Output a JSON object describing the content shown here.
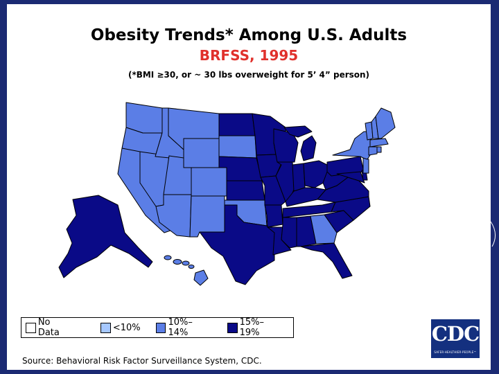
{
  "title": "Obesity Trends* Among U.S. Adults",
  "subtitle": "BRFSS, 1995",
  "footnote": "(*BMI ≥30, or ~ 30 lbs overweight for 5’ 4” person)",
  "legend": [
    {
      "label": "No Data",
      "color": "#ffffff"
    },
    {
      "label": "<10%",
      "color": "#a6c8ff"
    },
    {
      "label": "10%–14%",
      "color": "#5b7ee6"
    },
    {
      "label": "15%–19%",
      "color": "#0a0a87"
    }
  ],
  "source": "Source: Behavioral Risk Factor Surveillance System, CDC.",
  "logo": {
    "text": "CDC",
    "tagline": "SAFER·HEALTHIER·PEOPLE™"
  },
  "categories": {
    "10%–14%": [
      "WA",
      "OR",
      "CA",
      "NV",
      "ID",
      "MT",
      "WY",
      "UT",
      "AZ",
      "CO",
      "NM",
      "SD",
      "OK",
      "GA",
      "HI",
      "ME",
      "NH",
      "VT",
      "NY",
      "MA",
      "CT",
      "RI",
      "NJ"
    ],
    "15%–19%": [
      "AK",
      "ND",
      "MN",
      "WI",
      "MI",
      "NE",
      "KS",
      "IA",
      "MO",
      "IL",
      "IN",
      "OH",
      "KY",
      "TN",
      "AR",
      "TX",
      "LA",
      "MS",
      "AL",
      "FL",
      "SC",
      "NC",
      "VA",
      "WV",
      "PA",
      "MD",
      "DE"
    ]
  }
}
